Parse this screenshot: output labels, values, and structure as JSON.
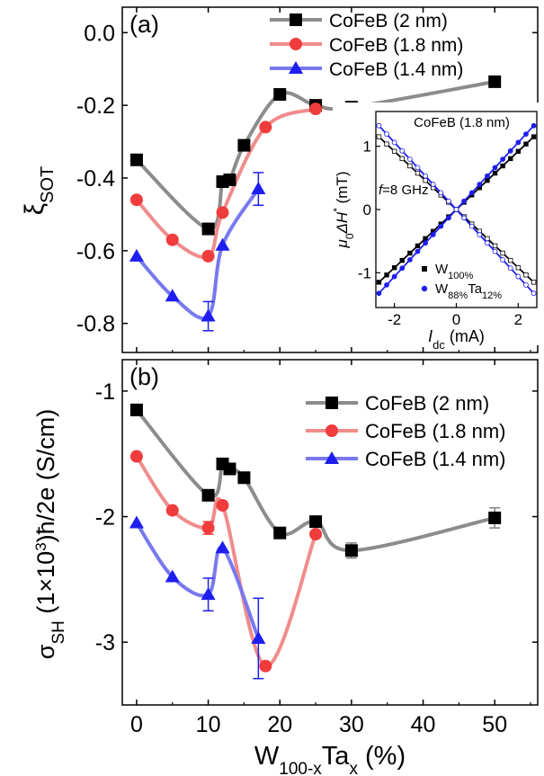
{
  "chart_data": [
    {
      "type": "line",
      "panel_label": "(a)",
      "ylabel": "ξ",
      "ylabel_sub": "SOT",
      "ylim": [
        -0.88,
        0.07
      ],
      "yticks": [
        0.0,
        -0.2,
        -0.4,
        -0.6,
        -0.8
      ],
      "ytick_labels": [
        "0.0",
        "-0.2",
        "-0.4",
        "-0.6",
        "-0.8"
      ],
      "xlim": [
        -2,
        56
      ],
      "xticks": [
        0,
        10,
        20,
        30,
        40,
        50
      ],
      "legend": "top-center",
      "series": [
        {
          "name": "CoFeB (2 nm)",
          "color": "#808080",
          "line_color": "#8c8c8c",
          "marker": "square",
          "x": [
            0,
            10,
            12,
            13,
            15,
            20,
            25,
            30,
            50
          ],
          "y": [
            -0.35,
            -0.54,
            -0.41,
            -0.405,
            -0.31,
            -0.17,
            -0.2,
            -0.205,
            -0.135
          ]
        },
        {
          "name": "CoFeB (1.8 nm)",
          "color": "#f03c3c",
          "line_color": "#f08c8c",
          "marker": "circle",
          "x": [
            0,
            5,
            10,
            12,
            18,
            25
          ],
          "y": [
            -0.46,
            -0.57,
            -0.615,
            -0.495,
            -0.26,
            -0.21
          ]
        },
        {
          "name": "CoFeB (1.4 nm)",
          "color": "#1e1ef0",
          "line_color": "#7878f0",
          "marker": "triangle",
          "x": [
            0,
            5,
            10,
            12,
            17
          ],
          "y": [
            -0.615,
            -0.725,
            -0.78,
            -0.585,
            -0.43
          ]
        }
      ],
      "error_bars": [
        {
          "series": 2,
          "x": 10,
          "y": -0.78,
          "err": 0.04
        },
        {
          "series": 2,
          "x": 17,
          "y": -0.43,
          "err": 0.045
        }
      ]
    },
    {
      "type": "line",
      "panel_label": "(b)",
      "ylabel": "σ_SH (1×10³)ħ/2e (S/cm)",
      "ylabel_parts": [
        "σ",
        "SH",
        " (1×10",
        "3",
        ")ħ/2e (S/cm)"
      ],
      "ylim": [
        -3.5,
        -0.75
      ],
      "yticks": [
        -1,
        -2,
        -3
      ],
      "ytick_labels": [
        "-1",
        "-2",
        "-3"
      ],
      "xlim": [
        -2,
        56
      ],
      "xticks": [
        0,
        10,
        20,
        30,
        40,
        50
      ],
      "xtick_labels": [
        "0",
        "10",
        "20",
        "30",
        "40",
        "50"
      ],
      "xlabel_parts": [
        "W",
        "100-x",
        "Ta",
        "x",
        " (%)"
      ],
      "legend": "top-right",
      "series": [
        {
          "name": "CoFeB (2 nm)",
          "color": "#808080",
          "line_color": "#8c8c8c",
          "marker": "square",
          "x": [
            0,
            10,
            12,
            13,
            15,
            20,
            25,
            30,
            50
          ],
          "y": [
            -1.15,
            -1.83,
            -1.58,
            -1.62,
            -1.69,
            -2.13,
            -2.04,
            -2.27,
            -2.01
          ]
        },
        {
          "name": "CoFeB (1.8 nm)",
          "color": "#f03c3c",
          "line_color": "#f08c8c",
          "marker": "circle",
          "x": [
            0,
            5,
            10,
            12,
            18,
            25
          ],
          "y": [
            -1.52,
            -1.95,
            -2.09,
            -1.91,
            -3.19,
            -2.14
          ]
        },
        {
          "name": "CoFeB (1.4 nm)",
          "color": "#1e1ef0",
          "line_color": "#7878f0",
          "marker": "triangle",
          "x": [
            0,
            5,
            10,
            12,
            17
          ],
          "y": [
            -2.05,
            -2.48,
            -2.62,
            -2.25,
            -2.97
          ]
        }
      ],
      "error_bars": [
        {
          "series": 0,
          "x": 30,
          "y": -2.27,
          "err": 0.06
        },
        {
          "series": 0,
          "x": 50,
          "y": -2.01,
          "err": 0.08
        },
        {
          "series": 1,
          "x": 10,
          "y": -2.09,
          "err": 0.05
        },
        {
          "series": 2,
          "x": 10,
          "y": -2.62,
          "err": 0.13
        },
        {
          "series": 2,
          "x": 17,
          "y": -2.97,
          "err": 0.32
        }
      ]
    },
    {
      "type": "scatter",
      "title": "CoFeB (1.8 nm)",
      "annotation_parts": [
        "f",
        "=8 GHz"
      ],
      "ylabel_parts": [
        "μ",
        "0",
        "ΔH",
        "*",
        " (mT)"
      ],
      "xlabel_parts": [
        "I",
        "dc",
        " (mA)"
      ],
      "xlim": [
        -2.6,
        2.6
      ],
      "ylim": [
        -1.55,
        1.55
      ],
      "xticks": [
        -2,
        0,
        2
      ],
      "xtick_labels": [
        "-2",
        "0",
        "2"
      ],
      "yticks": [
        -1,
        0,
        1
      ],
      "ytick_labels": [
        "-1",
        "0",
        "1"
      ],
      "legend": "bottom-right",
      "series": [
        {
          "name_parts": [
            "W",
            "100%"
          ],
          "color": "#000000",
          "marker": "square",
          "slopes": [
            0.46,
            -0.46
          ],
          "x_range": [
            -2.5,
            2.5
          ]
        },
        {
          "name_parts": [
            "W",
            "88%",
            "Ta",
            "12%"
          ],
          "color": "#1e1ef0",
          "marker": "circle",
          "slopes": [
            0.53,
            -0.53
          ],
          "x_range": [
            -2.5,
            2.5
          ]
        }
      ]
    }
  ]
}
